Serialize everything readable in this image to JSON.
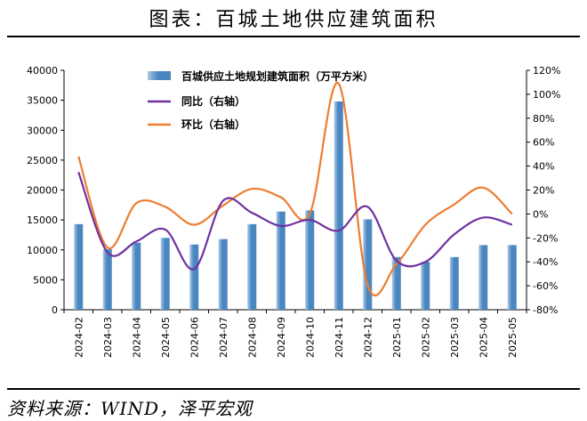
{
  "figure_title": "图表：百城土地供应建筑面积",
  "source": "资料来源：WIND，泽平宏观",
  "colors": {
    "bar": "#4a86c0",
    "bar_light": "#a9c8e6",
    "yoy": "#7030a0",
    "mom": "#ed7d31"
  },
  "chart_data": {
    "type": "bar",
    "title": "",
    "categories": [
      "2024-02",
      "2024-03",
      "2024-04",
      "2024-05",
      "2024-06",
      "2024-07",
      "2024-08",
      "2024-09",
      "2024-10",
      "2024-11",
      "2024-12",
      "2025-01",
      "2025-02",
      "2025-03",
      "2025-04",
      "2025-05"
    ],
    "series": [
      {
        "name": "百城供应土地规划建筑面积（万平方米）",
        "type": "bar",
        "axis": "left",
        "values": [
          14300,
          10100,
          11200,
          12000,
          10900,
          11800,
          14300,
          16400,
          16600,
          34800,
          15100,
          8800,
          8000,
          8800,
          10800,
          10800
        ]
      },
      {
        "name": "同比（右轴）",
        "type": "line",
        "axis": "right",
        "unit": "%",
        "values": [
          35,
          -32,
          -23,
          -13,
          -46,
          11,
          1,
          -10,
          -5,
          -14,
          6,
          -39,
          -40,
          -17,
          -3,
          -9
        ]
      },
      {
        "name": "环比（右轴）",
        "type": "line",
        "axis": "right",
        "unit": "%",
        "values": [
          48,
          -28,
          9,
          6,
          -9,
          7,
          21,
          14,
          0,
          109,
          -59,
          -42,
          -9,
          8,
          22,
          0
        ]
      }
    ],
    "y_left": {
      "lim": [
        0,
        40000
      ],
      "ticks": [
        0,
        5000,
        10000,
        15000,
        20000,
        25000,
        30000,
        35000,
        40000
      ]
    },
    "y_right": {
      "lim": [
        -80,
        120
      ],
      "ticks": [
        -80,
        -60,
        -40,
        -20,
        0,
        20,
        40,
        60,
        80,
        100,
        120
      ],
      "tick_labels": [
        "-80%",
        "-60%",
        "-40%",
        "-20%",
        "0%",
        "20%",
        "40%",
        "60%",
        "80%",
        "100%",
        "120%"
      ]
    },
    "legend_position": "top-center",
    "grid": false
  }
}
